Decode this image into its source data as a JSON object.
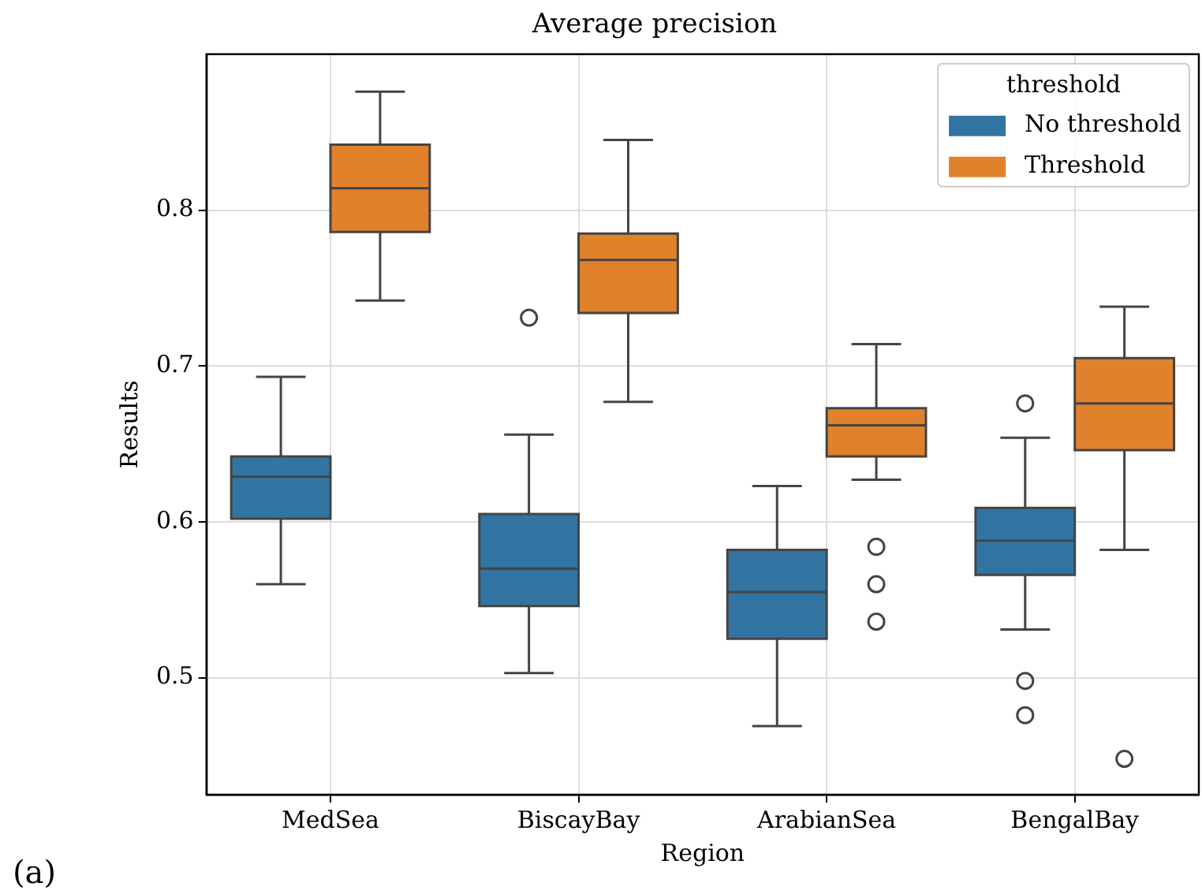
{
  "chart_data": {
    "type": "box",
    "title": "Average precision",
    "xlabel": "Region",
    "ylabel": "Results",
    "legend_title": "threshold",
    "legend": "top right",
    "grid": true,
    "categories": [
      "MedSea",
      "BiscayBay",
      "ArabianSea",
      "BengalBay"
    ],
    "ylim": [
      0.425,
      0.9
    ],
    "yticks": [
      0.5,
      0.6,
      0.7,
      0.8
    ],
    "series": [
      {
        "name": "No threshold",
        "color": "#3274a1",
        "boxes": [
          {
            "low": 0.56,
            "q1": 0.602,
            "median": 0.629,
            "q3": 0.642,
            "high": 0.693
          },
          {
            "low": 0.503,
            "q1": 0.546,
            "median": 0.57,
            "q3": 0.605,
            "high": 0.656,
            "outliers": [
              0.731
            ]
          },
          {
            "low": 0.469,
            "q1": 0.525,
            "median": 0.555,
            "q3": 0.582,
            "high": 0.623
          },
          {
            "low": 0.531,
            "q1": 0.566,
            "median": 0.588,
            "q3": 0.609,
            "high": 0.654,
            "outliers": [
              0.676,
              0.498,
              0.476
            ]
          }
        ]
      },
      {
        "name": "Threshold",
        "color": "#e1812c",
        "boxes": [
          {
            "low": 0.742,
            "q1": 0.786,
            "median": 0.814,
            "q3": 0.842,
            "high": 0.876
          },
          {
            "low": 0.677,
            "q1": 0.734,
            "median": 0.768,
            "q3": 0.785,
            "high": 0.845
          },
          {
            "low": 0.627,
            "q1": 0.642,
            "median": 0.662,
            "q3": 0.673,
            "high": 0.714,
            "outliers": [
              0.584,
              0.56,
              0.536
            ]
          },
          {
            "low": 0.582,
            "q1": 0.646,
            "median": 0.676,
            "q3": 0.705,
            "high": 0.738,
            "outliers": [
              0.448
            ]
          }
        ]
      }
    ],
    "annotations": [
      "(a)"
    ]
  }
}
